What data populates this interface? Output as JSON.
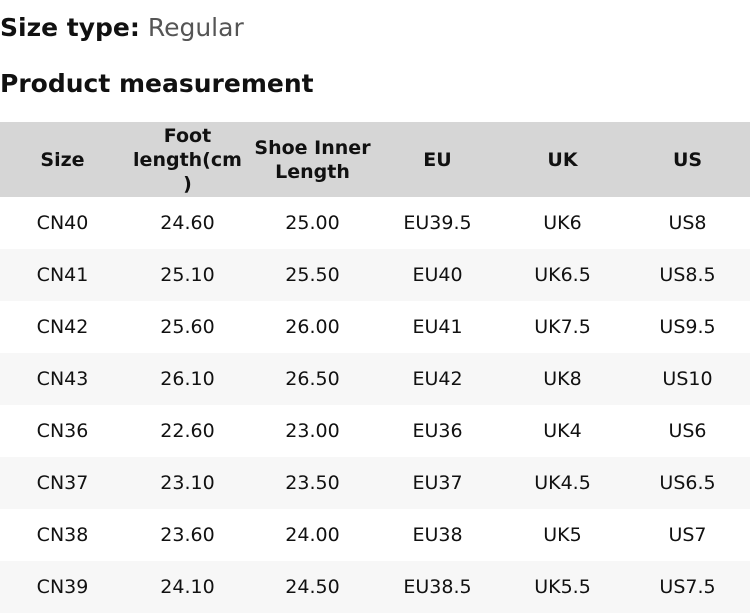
{
  "size_type": {
    "label": "Size type:",
    "value": "Regular"
  },
  "heading": "Product measurement",
  "table": {
    "headers": [
      "Size",
      "Foot length(cm )",
      "Shoe Inner Length",
      "EU",
      "UK",
      "US"
    ],
    "rows": [
      [
        "CN40",
        "24.60",
        "25.00",
        "EU39.5",
        "UK6",
        "US8"
      ],
      [
        "CN41",
        "25.10",
        "25.50",
        "EU40",
        "UK6.5",
        "US8.5"
      ],
      [
        "CN42",
        "25.60",
        "26.00",
        "EU41",
        "UK7.5",
        "US9.5"
      ],
      [
        "CN43",
        "26.10",
        "26.50",
        "EU42",
        "UK8",
        "US10"
      ],
      [
        "CN36",
        "22.60",
        "23.00",
        "EU36",
        "UK4",
        "US6"
      ],
      [
        "CN37",
        "23.10",
        "23.50",
        "EU37",
        "UK4.5",
        "US6.5"
      ],
      [
        "CN38",
        "23.60",
        "24.00",
        "EU38",
        "UK5",
        "US7"
      ],
      [
        "CN39",
        "24.10",
        "24.50",
        "EU38.5",
        "UK5.5",
        "US7.5"
      ]
    ]
  }
}
